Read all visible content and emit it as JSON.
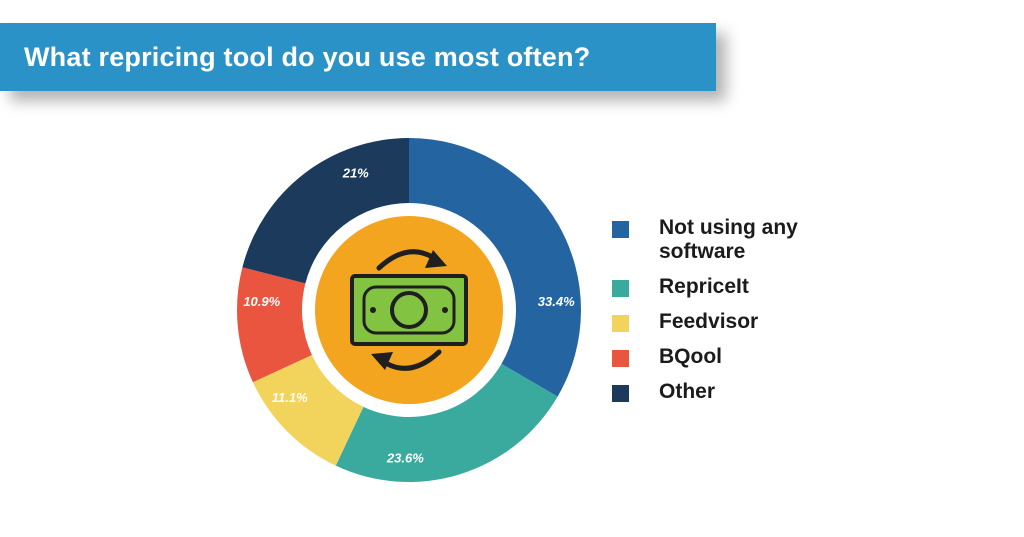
{
  "chart_data": {
    "type": "pie",
    "variant": "donut",
    "title": "What repricing tool do you use most often?",
    "legend_position": "right",
    "series": [
      {
        "name": "Not using any software",
        "value": 33.4,
        "label": "33.4%",
        "color": "#2464a1"
      },
      {
        "name": "RepriceIt",
        "value": 23.6,
        "label": "23.6%",
        "color": "#3aaa9f"
      },
      {
        "name": "Feedvisor",
        "value": 11.1,
        "label": "11.1%",
        "color": "#f2d35b"
      },
      {
        "name": "BQool",
        "value": 10.9,
        "label": "10.9%",
        "color": "#e9553f"
      },
      {
        "name": "Other",
        "value": 21,
        "label": "21%",
        "color": "#1b3a5c"
      }
    ]
  },
  "center_icon": {
    "name": "money-exchange-icon",
    "background_color": "#f4a51f",
    "bill_color": "#82c341"
  },
  "banner_color": "#2b92c8"
}
